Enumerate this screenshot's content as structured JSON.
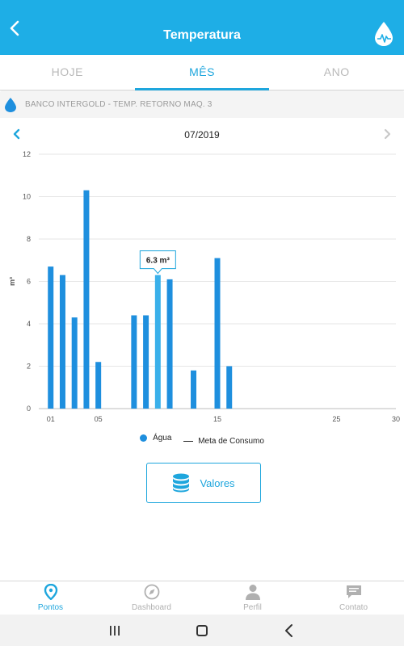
{
  "header": {
    "title": "Temperatura",
    "back_icon": "back-arrow-icon",
    "logo_icon": "water-drop-logo-icon",
    "color": "#1eaee6"
  },
  "tabs": [
    {
      "label": "HOJE",
      "active": false
    },
    {
      "label": "MÊS",
      "active": true
    },
    {
      "label": "ANO",
      "active": false
    }
  ],
  "device": {
    "name": "BANCO INTERGOLD - TEMP. RETORNO MAQ. 3",
    "icon": "water-drop-icon"
  },
  "period": {
    "label": "07/2019",
    "prev_icon": "chevron-left-icon",
    "next_icon": "chevron-right-icon"
  },
  "chart_data": {
    "type": "bar",
    "ylabel": "m³",
    "ylim": [
      0,
      12
    ],
    "yticks": [
      0,
      2,
      4,
      6,
      8,
      10,
      12
    ],
    "xlim": [
      0,
      30
    ],
    "xticks": [
      {
        "value": 1,
        "label": "01"
      },
      {
        "value": 5,
        "label": "05"
      },
      {
        "value": 15,
        "label": "15"
      },
      {
        "value": 25,
        "label": "25"
      },
      {
        "value": 30,
        "label": "30"
      }
    ],
    "series": [
      {
        "name": "Água",
        "color": "#1e8fde",
        "points": [
          {
            "day": 1,
            "value": 6.7
          },
          {
            "day": 2,
            "value": 6.3
          },
          {
            "day": 3,
            "value": 4.3
          },
          {
            "day": 4,
            "value": 10.3
          },
          {
            "day": 5,
            "value": 2.2
          },
          {
            "day": 8,
            "value": 4.4
          },
          {
            "day": 9,
            "value": 4.4
          },
          {
            "day": 10,
            "value": 6.3
          },
          {
            "day": 11,
            "value": 6.1
          },
          {
            "day": 13,
            "value": 1.8
          },
          {
            "day": 15,
            "value": 7.1
          },
          {
            "day": 16,
            "value": 2.0
          }
        ]
      }
    ],
    "highlight": {
      "day": 10,
      "label": "6.3 m³",
      "color": "#3ab0ea"
    },
    "legend": [
      {
        "label": "Água",
        "marker": "dot",
        "color": "#1e8fde"
      },
      {
        "label": "Meta de Consumo",
        "marker": "line",
        "color": "#222222"
      }
    ],
    "grid": true
  },
  "valores_button": {
    "label": "Valores",
    "icon": "database-icon"
  },
  "bottom_nav": [
    {
      "label": "Pontos",
      "icon": "map-pin-icon",
      "active": true
    },
    {
      "label": "Dashboard",
      "icon": "compass-icon",
      "active": false
    },
    {
      "label": "Perfil",
      "icon": "user-icon",
      "active": false
    },
    {
      "label": "Contato",
      "icon": "chat-icon",
      "active": false
    }
  ],
  "system_bar": {
    "recents_icon": "recent-apps-icon",
    "home_icon": "home-square-icon",
    "back_icon": "system-back-icon"
  }
}
